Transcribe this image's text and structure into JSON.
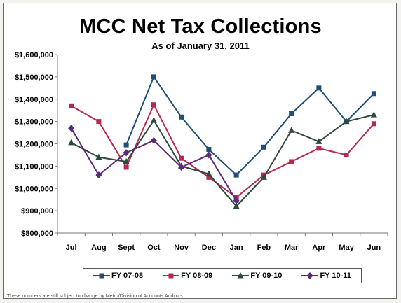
{
  "chart_data": {
    "type": "line",
    "title": "MCC Net Tax Collections",
    "subtitle": "As of January 31, 2011",
    "categories": [
      "Jul",
      "Aug",
      "Sept",
      "Oct",
      "Nov",
      "Dec",
      "Jan",
      "Feb",
      "Mar",
      "Apr",
      "May",
      "Jun"
    ],
    "yticks": [
      "$800,000",
      "$900,000",
      "$1,000,000",
      "$1,100,000",
      "$1,200,000",
      "$1,300,000",
      "$1,400,000",
      "$1,500,000",
      "$1,600,000"
    ],
    "ylim": [
      800000,
      1600000
    ],
    "grid": false,
    "legend_position": "bottom",
    "series": [
      {
        "name": "FY 07-08",
        "color": "#1f4e79",
        "marker": "square",
        "values": [
          null,
          null,
          1195000,
          1500000,
          1320000,
          1175000,
          1060000,
          1185000,
          1335000,
          1450000,
          1300000,
          1425000
        ]
      },
      {
        "name": "FY 08-09",
        "color": "#b5294f",
        "marker": "square",
        "values": [
          1370000,
          1300000,
          1095000,
          1375000,
          1135000,
          1050000,
          960000,
          1060000,
          1120000,
          1180000,
          1150000,
          1290000
        ]
      },
      {
        "name": "FY 09-10",
        "color": "#2e4a3a",
        "marker": "triangle",
        "values": [
          1205000,
          1140000,
          1120000,
          1305000,
          1100000,
          1065000,
          920000,
          1050000,
          1260000,
          1210000,
          1300000,
          1330000
        ]
      },
      {
        "name": "FY 10-11",
        "color": "#5b2a7a",
        "marker": "diamond",
        "values": [
          1270000,
          1060000,
          1160000,
          1215000,
          1095000,
          1150000,
          945000,
          null,
          null,
          null,
          null,
          null
        ]
      }
    ],
    "footnote": "These numbers are still subject to change by Metro/Division of Accounts Auditors."
  }
}
